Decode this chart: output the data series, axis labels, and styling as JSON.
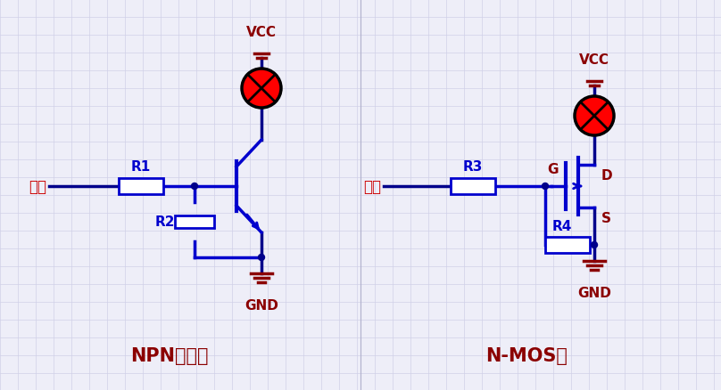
{
  "bg_color": "#eeeef8",
  "grid_color": "#d0d0e8",
  "wire_color": "#00008B",
  "label_color": "#8B0000",
  "input_color": "#CC0000",
  "component_color": "#0000CD",
  "title1": "NPN三极管",
  "title2": "N-MOS管",
  "vcc_label": "VCC",
  "gnd_label": "GND",
  "input_label": "输入",
  "r1_label": "R1",
  "r2_label": "R2",
  "r3_label": "R3",
  "r4_label": "R4",
  "g_label": "G",
  "d_label": "D",
  "s_label": "S"
}
